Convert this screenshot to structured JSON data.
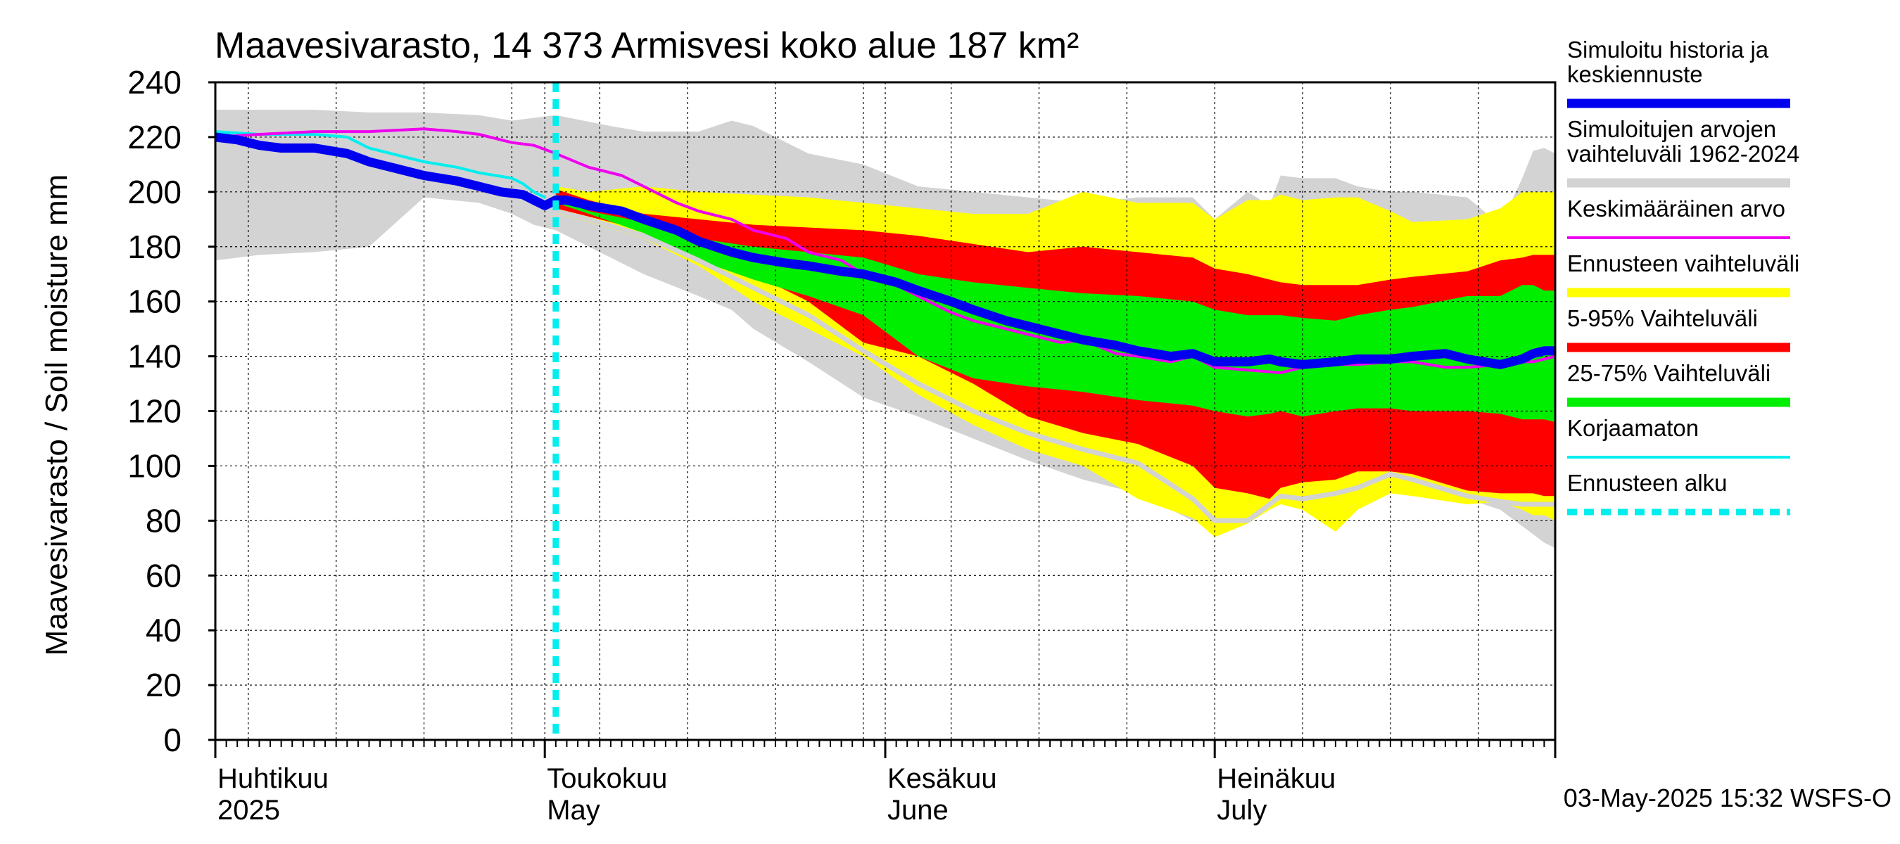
{
  "chart_data": {
    "type": "area",
    "title": "Maavesivarasto, 14 373 Armisvesi koko alue 187 km²",
    "ylabel": "Maavesivarasto / Soil moisture   mm",
    "ylim": [
      0,
      240
    ],
    "yticks": [
      "0",
      "20",
      "40",
      "60",
      "80",
      "100",
      "120",
      "140",
      "160",
      "180",
      "200",
      "220",
      "240"
    ],
    "grid": true,
    "xaxis_unit": "day of year 2025",
    "xlim": [
      91,
      213
    ],
    "month_ticks": [
      91,
      121,
      152,
      182,
      213
    ],
    "month_labels": [
      {
        "day": 91,
        "fi": "Huhtikuu",
        "en": "2025"
      },
      {
        "day": 121,
        "fi": "Toukokuu",
        "en": "May"
      },
      {
        "day": 152,
        "fi": "Kesäkuu",
        "en": "June"
      },
      {
        "day": 182,
        "fi": "Heinäkuu",
        "en": "July"
      }
    ],
    "forecast_start_day": 122,
    "timestamp": "03-May-2025 15:32 WSFS-O",
    "colors": {
      "history": "#0000ee",
      "range_all": "#d3d3d3",
      "mean": "#ee00ee",
      "forecast_range": "#ffff00",
      "p5_95": "#ff0000",
      "p25_75": "#00ee00",
      "uncorrected": "#00eeee",
      "forecast_start": "#00eeee",
      "grid": "#000000"
    },
    "legend": [
      {
        "key": "history",
        "label_lines": [
          "Simuloitu historia ja",
          "keskiennuste"
        ],
        "style": "thick",
        "color": "#0000ee"
      },
      {
        "key": "range_all",
        "label_lines": [
          "Simuloitujen arvojen",
          "vaihteluväli 1962-2024"
        ],
        "style": "band",
        "color": "#d3d3d3"
      },
      {
        "key": "mean",
        "label_lines": [
          "Keskimääräinen arvo"
        ],
        "style": "line",
        "color": "#ee00ee"
      },
      {
        "key": "forecast_range",
        "label_lines": [
          "Ennusteen vaihteluväli"
        ],
        "style": "band",
        "color": "#ffff00"
      },
      {
        "key": "p5_95",
        "label_lines": [
          "5-95% Vaihteluväli"
        ],
        "style": "band",
        "color": "#ff0000"
      },
      {
        "key": "p25_75",
        "label_lines": [
          "25-75% Vaihteluväli"
        ],
        "style": "band",
        "color": "#00ee00"
      },
      {
        "key": "uncorrected",
        "label_lines": [
          "Korjaamaton"
        ],
        "style": "line",
        "color": "#00eeee"
      },
      {
        "key": "forecast_start",
        "label_lines": [
          "Ennusteen alku"
        ],
        "style": "dashed",
        "color": "#00eeee"
      }
    ],
    "series": {
      "range_all": {
        "x": [
          91,
          95,
          100,
          105,
          110,
          115,
          118,
          120,
          122,
          127,
          130,
          135,
          138,
          140,
          145,
          150,
          155,
          160,
          165,
          170,
          175,
          180,
          182,
          185,
          187,
          188,
          190,
          193,
          195,
          198,
          200,
          205,
          208,
          210,
          211,
          212,
          213
        ],
        "upper": [
          230,
          230,
          230,
          229,
          229,
          228,
          226,
          227,
          228,
          224,
          222,
          222,
          226,
          224,
          214,
          210,
          202,
          200,
          198,
          196,
          198,
          198,
          190,
          200,
          195,
          206,
          205,
          205,
          202,
          200,
          200,
          198,
          188,
          205,
          215,
          216,
          214
        ],
        "lower": [
          175,
          177,
          178,
          180,
          198,
          196,
          192,
          188,
          186,
          176,
          170,
          162,
          157,
          150,
          138,
          125,
          118,
          110,
          102,
          95,
          90,
          80,
          78,
          82,
          90,
          88,
          90,
          92,
          96,
          93,
          92,
          88,
          84,
          78,
          75,
          72,
          70
        ]
      },
      "forecast_range": {
        "x": [
          122,
          125,
          130,
          135,
          140,
          145,
          150,
          155,
          160,
          165,
          170,
          175,
          180,
          182,
          185,
          187,
          188,
          190,
          193,
          195,
          198,
          200,
          205,
          208,
          210,
          211,
          212,
          213
        ],
        "upper": [
          202,
          200,
          202,
          200,
          199,
          198,
          196,
          194,
          192,
          192,
          200,
          196,
          196,
          190,
          197,
          197,
          199,
          197,
          198,
          198,
          193,
          189,
          190,
          194,
          200,
          200,
          200,
          200
        ],
        "lower": [
          192,
          189,
          183,
          173,
          160,
          150,
          140,
          126,
          115,
          106,
          100,
          88,
          81,
          74,
          79,
          84,
          86,
          84,
          76,
          84,
          90,
          89,
          86,
          87,
          84,
          82,
          82,
          80
        ]
      },
      "p5_95": {
        "x": [
          122,
          125,
          130,
          135,
          140,
          145,
          150,
          155,
          160,
          165,
          170,
          175,
          180,
          182,
          185,
          187,
          188,
          190,
          193,
          195,
          198,
          200,
          205,
          208,
          210,
          211,
          212,
          213
        ],
        "upper": [
          201,
          197,
          192,
          190,
          188,
          187,
          186,
          184,
          181,
          178,
          180,
          178,
          176,
          172,
          170,
          168,
          167,
          166,
          166,
          166,
          168,
          169,
          171,
          175,
          176,
          177,
          177,
          177
        ],
        "lower": [
          194,
          191,
          186,
          180,
          170,
          160,
          145,
          140,
          130,
          118,
          112,
          108,
          100,
          92,
          90,
          88,
          92,
          94,
          95,
          98,
          98,
          97,
          91,
          90,
          90,
          90,
          89,
          89
        ]
      },
      "p25_75": {
        "x": [
          122,
          125,
          130,
          135,
          140,
          145,
          150,
          155,
          160,
          165,
          170,
          175,
          180,
          182,
          185,
          187,
          188,
          190,
          193,
          195,
          198,
          200,
          205,
          208,
          210,
          211,
          212,
          213
        ],
        "upper": [
          199,
          193,
          189,
          183,
          180,
          178,
          176,
          170,
          167,
          165,
          163,
          162,
          160,
          157,
          155,
          155,
          155,
          154,
          153,
          155,
          157,
          158,
          162,
          162,
          166,
          166,
          164,
          164
        ],
        "lower": [
          196,
          192,
          185,
          175,
          168,
          162,
          155,
          140,
          132,
          129,
          127,
          124,
          122,
          120,
          118,
          119,
          120,
          118,
          120,
          121,
          121,
          120,
          120,
          119,
          117,
          117,
          117,
          116
        ]
      },
      "uncorrected_forecast": {
        "x": [
          122,
          125,
          130,
          135,
          140,
          145,
          150,
          155,
          160,
          165,
          170,
          175,
          180,
          182,
          185,
          187,
          188,
          190,
          193,
          195,
          198,
          200,
          205,
          208,
          210,
          211,
          212,
          213
        ],
        "y": [
          193,
          190,
          184,
          175,
          165,
          155,
          142,
          130,
          120,
          112,
          106,
          101,
          88,
          80,
          80,
          86,
          89,
          88,
          90,
          92,
          97,
          95,
          89,
          87,
          86,
          86,
          86,
          86
        ]
      },
      "history": {
        "x": [
          91,
          93,
          95,
          97,
          100,
          103,
          105,
          108,
          110,
          113,
          115,
          117,
          119,
          120,
          121,
          122,
          123,
          125,
          128,
          130,
          133,
          135,
          138,
          140,
          143,
          145,
          148,
          150,
          153,
          155,
          158,
          160,
          163,
          165,
          168,
          170,
          173,
          175,
          178,
          180,
          182,
          185,
          187,
          188,
          190,
          193,
          195,
          198,
          200,
          203,
          205,
          208,
          210,
          211,
          212,
          213
        ],
        "y": [
          220,
          219,
          217,
          216,
          216,
          214,
          211,
          208,
          206,
          204,
          202,
          200,
          199,
          197,
          195,
          197,
          197,
          195,
          193,
          190,
          186,
          182,
          178,
          176,
          174,
          173,
          171,
          170,
          167,
          164,
          160,
          157,
          153,
          151,
          148,
          146,
          144,
          142,
          140,
          141,
          138,
          138,
          139,
          138,
          137,
          138,
          139,
          139,
          140,
          141,
          139,
          137,
          139,
          141,
          142,
          142
        ]
      },
      "mean": {
        "x": [
          91,
          95,
          100,
          105,
          110,
          113,
          115,
          118,
          120,
          122,
          125,
          128,
          130,
          133,
          135,
          138,
          140,
          143,
          145,
          148,
          150,
          153,
          155,
          158,
          160,
          163,
          165,
          168,
          170,
          173,
          175,
          178,
          180,
          182,
          185,
          188,
          190,
          193,
          195,
          198,
          200,
          203,
          205,
          208,
          210,
          211,
          212,
          213
        ],
        "y": [
          220,
          221,
          222,
          222,
          223,
          222,
          221,
          218,
          217,
          214,
          209,
          206,
          202,
          196,
          193,
          190,
          186,
          183,
          178,
          175,
          170,
          166,
          162,
          156,
          153,
          150,
          148,
          145,
          146,
          141,
          140,
          138,
          140,
          136,
          135,
          134,
          136,
          137,
          137,
          138,
          138,
          136,
          136,
          137,
          138,
          138,
          139,
          140
        ]
      },
      "uncorrected_history": {
        "x": [
          91,
          95,
          100,
          103,
          105,
          108,
          110,
          113,
          115,
          118,
          119,
          120,
          121
        ],
        "y": [
          222,
          221,
          221,
          220,
          216,
          213,
          211,
          209,
          207,
          205,
          203,
          200,
          198
        ]
      }
    }
  }
}
